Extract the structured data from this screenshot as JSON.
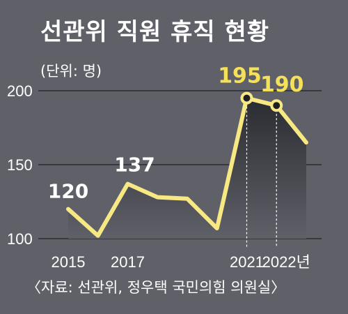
{
  "title": "선관위 직원 휴직 현황",
  "unit_label": "(단위: 명)",
  "source": "〈자료: 선관위, 정우택 국민의힘 의원실〉",
  "colors": {
    "background": "#5f6068",
    "line": "#f7e884",
    "highlight_label": "#f5e05a",
    "area_top": "#2b2c31",
    "text": "#ffffff",
    "grid": "#2c2c30"
  },
  "chart_data": {
    "type": "area",
    "title": "선관위 직원 휴직 현황",
    "unit": "(단위: 명)",
    "x": [
      2015,
      2016,
      2017,
      2018,
      2019,
      2020,
      2021,
      2022,
      2023
    ],
    "values": [
      120,
      102,
      137,
      128,
      127,
      107,
      195,
      190,
      165
    ],
    "x_tick_labels": [
      {
        "x": 2015,
        "label": "2015"
      },
      {
        "x": 2017,
        "label": "2017"
      },
      {
        "x": 2021,
        "label": "2021"
      },
      {
        "x": 2022,
        "label": "2022년"
      }
    ],
    "y_ticks": [
      100,
      150,
      200
    ],
    "ylim": [
      100,
      200
    ],
    "data_labels": [
      {
        "x": 2015,
        "value": 120,
        "label": "120",
        "highlight": false
      },
      {
        "x": 2017,
        "value": 137,
        "label": "137",
        "highlight": false
      },
      {
        "x": 2021,
        "value": 195,
        "label": "195",
        "highlight": true
      },
      {
        "x": 2022,
        "value": 190,
        "label": "190",
        "highlight": true
      }
    ],
    "markers": [
      2021,
      2022
    ],
    "vertical_dashed_at": [
      2021,
      2022
    ],
    "grid": true
  }
}
